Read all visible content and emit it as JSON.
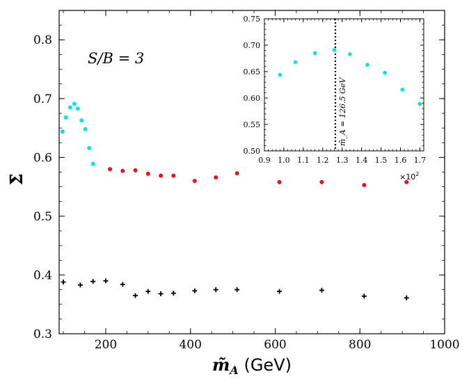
{
  "chart_data": [
    {
      "type": "scatter",
      "title": "",
      "xlabel": "m̃",
      "xlabel_sub": "A",
      "xlabel_unit": "(GeV)",
      "ylabel": "Σ̄",
      "xlim": [
        90,
        1000
      ],
      "ylim": [
        0.3,
        0.85
      ],
      "xticks": [
        200,
        400,
        600,
        800,
        1000
      ],
      "xtick_labels": [
        "200",
        "400",
        "600",
        "800",
        "1000"
      ],
      "yticks": [
        0.3,
        0.4,
        0.5,
        0.6,
        0.7,
        0.8
      ],
      "ytick_labels": [
        "0.3",
        "0.4",
        "0.5",
        "0.6",
        "0.7",
        "0.8"
      ],
      "annotation": "S/B = 3",
      "series": [
        {
          "marker": "dot",
          "color": "#00e5ee",
          "points": [
            [
              98,
              0.644
            ],
            [
              106,
              0.668
            ],
            [
              116,
              0.685
            ],
            [
              126,
              0.691
            ],
            [
              134,
              0.683
            ],
            [
              143,
              0.663
            ],
            [
              152,
              0.648
            ],
            [
              161,
              0.616
            ],
            [
              170,
              0.589
            ]
          ]
        },
        {
          "marker": "dot",
          "color": "#ee1111",
          "points": [
            [
              210,
              0.58
            ],
            [
              240,
              0.577
            ],
            [
              270,
              0.578
            ],
            [
              300,
              0.572
            ],
            [
              330,
              0.569
            ],
            [
              360,
              0.569
            ],
            [
              410,
              0.56
            ],
            [
              460,
              0.566
            ],
            [
              510,
              0.573
            ],
            [
              610,
              0.558
            ],
            [
              710,
              0.558
            ],
            [
              810,
              0.553
            ],
            [
              910,
              0.558
            ]
          ]
        },
        {
          "marker": "plus",
          "color": "#000000",
          "points": [
            [
              100,
              0.388
            ],
            [
              140,
              0.383
            ],
            [
              170,
              0.389
            ],
            [
              200,
              0.39
            ],
            [
              240,
              0.384
            ],
            [
              270,
              0.365
            ],
            [
              300,
              0.372
            ],
            [
              330,
              0.368
            ],
            [
              360,
              0.369
            ],
            [
              410,
              0.373
            ],
            [
              460,
              0.375
            ],
            [
              510,
              0.375
            ],
            [
              610,
              0.372
            ],
            [
              710,
              0.374
            ],
            [
              810,
              0.364
            ],
            [
              910,
              0.361
            ]
          ]
        }
      ]
    },
    {
      "type": "scatter",
      "inset": true,
      "title": "",
      "xlim": [
        0.9,
        1.72
      ],
      "ylim": [
        0.5,
        0.75
      ],
      "xticks": [
        0.9,
        1.0,
        1.1,
        1.2,
        1.3,
        1.4,
        1.5,
        1.6,
        1.7
      ],
      "xtick_labels": [
        "0.9",
        "1.0",
        "1.1",
        "1.2",
        "1.3",
        "1.4",
        "1.5",
        "1.6",
        "1.7"
      ],
      "yticks": [
        0.5,
        0.55,
        0.6,
        0.65,
        0.7,
        0.75
      ],
      "ytick_labels": [
        "0.50",
        "0.55",
        "0.60",
        "0.65",
        "0.70",
        "0.75"
      ],
      "x_multiplier": "×10",
      "x_multiplier_exp": "2",
      "vline_x": 1.265,
      "vline_label": "m̃_A = 126.5 GeV",
      "series": [
        {
          "marker": "dot",
          "color": "#00e5ee",
          "points": [
            [
              0.98,
              0.644
            ],
            [
              1.06,
              0.668
            ],
            [
              1.16,
              0.685
            ],
            [
              1.26,
              0.691
            ],
            [
              1.34,
              0.683
            ],
            [
              1.43,
              0.663
            ],
            [
              1.52,
              0.648
            ],
            [
              1.61,
              0.616
            ],
            [
              1.7,
              0.589
            ]
          ]
        }
      ]
    }
  ]
}
